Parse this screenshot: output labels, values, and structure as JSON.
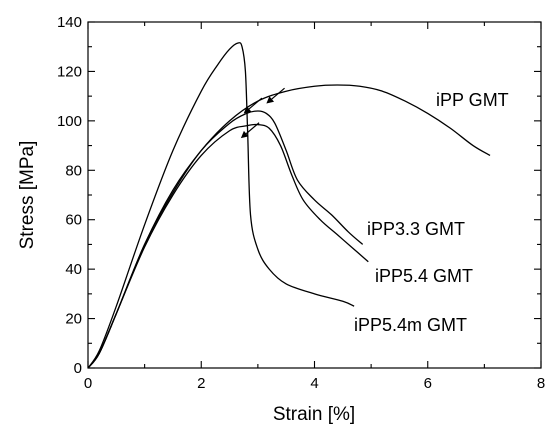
{
  "chart_data": {
    "type": "line",
    "xlabel": "Strain [%]",
    "ylabel": "Stress [MPa]",
    "xlim": [
      0,
      8
    ],
    "ylim": [
      0,
      140
    ],
    "x_major_ticks": [
      0,
      2,
      4,
      6,
      8
    ],
    "y_major_ticks": [
      0,
      20,
      40,
      60,
      80,
      100,
      120,
      140
    ],
    "x_tick_labels": [
      "0",
      "2",
      "4",
      "6",
      "8"
    ],
    "y_tick_labels": [
      "0",
      "20",
      "40",
      "60",
      "80",
      "100",
      "120",
      "140"
    ],
    "grid": false,
    "series": [
      {
        "name": "iPP GMT",
        "x": [
          0,
          0.2,
          0.5,
          1.0,
          1.5,
          2.0,
          2.5,
          3.0,
          3.5,
          4.0,
          4.4,
          4.8,
          5.2,
          5.6,
          6.0,
          6.4,
          6.8,
          7.1
        ],
        "y": [
          0,
          6,
          22,
          50,
          72,
          88,
          100,
          108,
          112,
          114,
          114.5,
          114,
          112,
          108,
          103,
          97,
          90,
          86
        ]
      },
      {
        "name": "iPP3.3 GMT",
        "x": [
          0,
          0.2,
          0.5,
          1.0,
          1.5,
          2.0,
          2.5,
          2.8,
          3.0,
          3.15,
          3.3,
          3.5,
          3.7,
          4.0,
          4.3,
          4.6,
          4.85
        ],
        "y": [
          0,
          6,
          22,
          50,
          71,
          88,
          99,
          103,
          104,
          103,
          99,
          88,
          76,
          68,
          62,
          55,
          50
        ]
      },
      {
        "name": "iPP5.4 GMT",
        "x": [
          0,
          0.2,
          0.5,
          1.0,
          1.5,
          2.0,
          2.5,
          2.8,
          3.0,
          3.2,
          3.4,
          3.6,
          3.8,
          4.1,
          4.4,
          4.7,
          4.95
        ],
        "y": [
          0,
          6,
          22,
          49,
          70,
          86,
          96,
          98,
          98.5,
          97,
          90,
          78,
          68,
          60,
          54,
          48,
          43
        ]
      },
      {
        "name": "iPP5.4m GMT",
        "x": [
          0,
          0.2,
          0.5,
          1.0,
          1.5,
          2.0,
          2.3,
          2.5,
          2.65,
          2.72,
          2.78,
          2.82,
          2.87,
          3.0,
          3.2,
          3.5,
          4.0,
          4.5,
          4.7
        ],
        "y": [
          0,
          7,
          25,
          58,
          88,
          112,
          123,
          129,
          131.5,
          130,
          120,
          95,
          62,
          48,
          40,
          34,
          30,
          27,
          25
        ]
      }
    ],
    "annotations": [
      {
        "type": "arrow",
        "target_series": "iPP GMT",
        "at_x": 3.15,
        "at_y": 107
      },
      {
        "type": "arrow",
        "target_series": "iPP3.3 GMT",
        "at_x": 2.75,
        "at_y": 103
      },
      {
        "type": "arrow",
        "target_series": "iPP5.4 GMT",
        "at_x": 2.7,
        "at_y": 93
      }
    ]
  }
}
